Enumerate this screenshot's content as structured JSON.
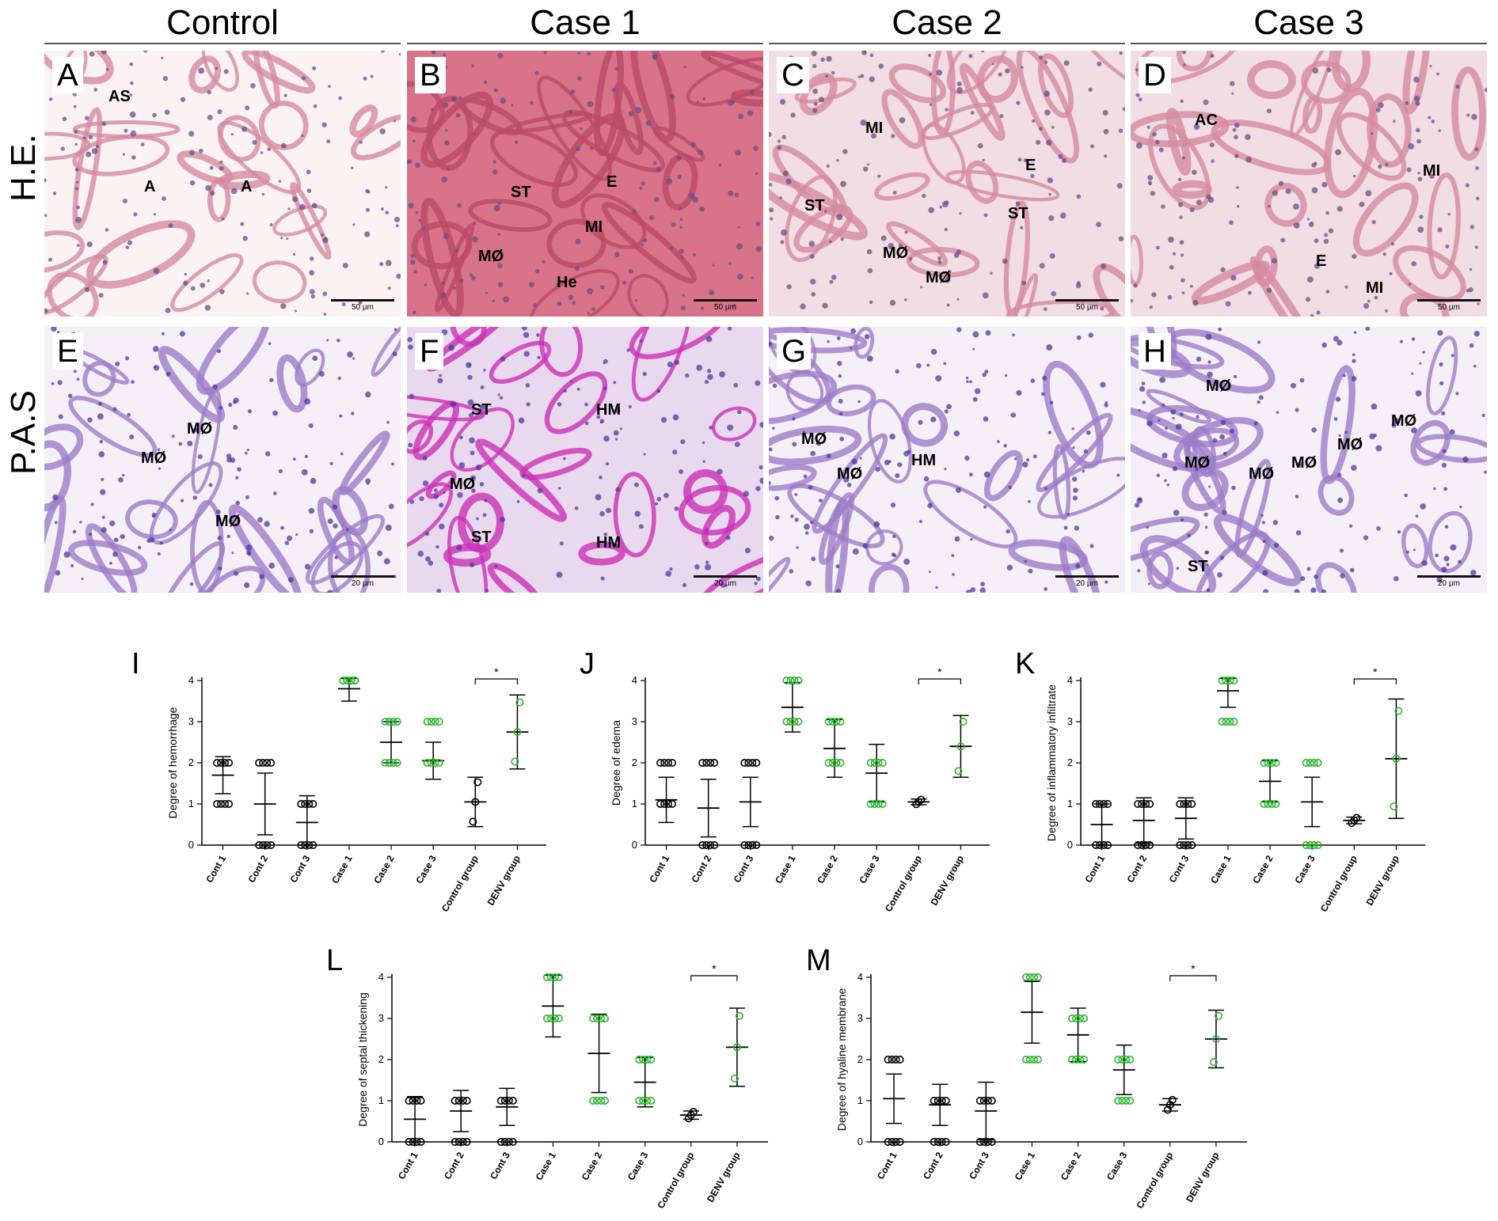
{
  "columns": [
    "Control",
    "Case 1",
    "Case 2",
    "Case 3"
  ],
  "rows": [
    "H.E.",
    "P.A.S"
  ],
  "panels": [
    {
      "label": "A",
      "scale": "50 µm",
      "annotations": [
        "AS",
        "A",
        "A"
      ]
    },
    {
      "label": "B",
      "scale": "50 µm",
      "annotations": [
        "E",
        "ST",
        "MI",
        "MØ",
        "He"
      ]
    },
    {
      "label": "C",
      "scale": "50 µm",
      "annotations": [
        "MI",
        "E",
        "ST",
        "ST",
        "MØ",
        "MØ"
      ]
    },
    {
      "label": "D",
      "scale": "50 µm",
      "annotations": [
        "AC",
        "MI",
        "E",
        "MI"
      ]
    },
    {
      "label": "E",
      "scale": "20 µm",
      "annotations": [
        "MØ",
        "MØ",
        "MØ"
      ]
    },
    {
      "label": "F",
      "scale": "20 µm",
      "annotations": [
        "ST",
        "HM",
        "MØ",
        "ST",
        "HM"
      ]
    },
    {
      "label": "G",
      "scale": "20 µm",
      "annotations": [
        "MØ",
        "MØ",
        "HM"
      ]
    },
    {
      "label": "H",
      "scale": "20 µm",
      "annotations": [
        "MØ",
        "MØ",
        "MØ",
        "MØ",
        "MØ",
        "MØ",
        "ST"
      ]
    }
  ],
  "colors": {
    "control": "#000000",
    "denv": "#2db52d",
    "he_bg": "#e9a6b8",
    "pas_bg": "#c9b8e6"
  },
  "chart_data": [
    {
      "label": "I",
      "type": "scatter",
      "ylabel": "Degree of hemorrhage",
      "ylim": [
        0,
        4
      ],
      "categories": [
        "Cont 1",
        "Cont 2",
        "Cont 3",
        "Case 1",
        "Case 2",
        "Case 3",
        "Control group",
        "DENV group"
      ],
      "mean": [
        1.7,
        1.0,
        0.55,
        3.8,
        2.5,
        2.05,
        1.05,
        2.75
      ],
      "sd": [
        0.45,
        0.75,
        0.65,
        0.3,
        0.5,
        0.45,
        0.6,
        0.9
      ],
      "annotation": "*"
    },
    {
      "label": "J",
      "type": "scatter",
      "ylabel": "Degree of edema",
      "ylim": [
        0,
        4
      ],
      "categories": [
        "Cont 1",
        "Cont 2",
        "Cont 3",
        "Case 1",
        "Case 2",
        "Case 3",
        "Control group",
        "DENV group"
      ],
      "mean": [
        1.1,
        0.9,
        1.05,
        3.35,
        2.35,
        1.75,
        1.05,
        2.4
      ],
      "sd": [
        0.55,
        0.7,
        0.6,
        0.6,
        0.7,
        0.7,
        0.07,
        0.75
      ],
      "annotation": "*"
    },
    {
      "label": "K",
      "type": "scatter",
      "ylabel": "Degree of inflammatory infiltrate",
      "ylim": [
        0,
        4
      ],
      "categories": [
        "Cont 1",
        "Cont 2",
        "Cont 3",
        "Case 1",
        "Case 2",
        "Case 3",
        "Control group",
        "DENV group"
      ],
      "mean": [
        0.5,
        0.6,
        0.65,
        3.75,
        1.55,
        1.05,
        0.6,
        2.1
      ],
      "sd": [
        0.5,
        0.55,
        0.5,
        0.4,
        0.5,
        0.6,
        0.08,
        1.45
      ],
      "annotation": "*"
    },
    {
      "label": "L",
      "type": "scatter",
      "ylabel": "Degree of septal thickening",
      "ylim": [
        0,
        4
      ],
      "categories": [
        "Cont 1",
        "Cont 2",
        "Cont 3",
        "Case 1",
        "Case 2",
        "Case 3",
        "Control group",
        "DENV group"
      ],
      "mean": [
        0.55,
        0.75,
        0.85,
        3.3,
        2.15,
        1.45,
        0.65,
        2.3
      ],
      "sd": [
        0.55,
        0.5,
        0.45,
        0.75,
        0.95,
        0.6,
        0.1,
        0.95
      ],
      "annotation": "*"
    },
    {
      "label": "M",
      "type": "scatter",
      "ylabel": "Degree of hyaline membrane",
      "ylim": [
        0,
        4
      ],
      "categories": [
        "Cont 1",
        "Cont 2",
        "Cont 3",
        "Case 1",
        "Case 2",
        "Case 3",
        "Control group",
        "DENV group"
      ],
      "mean": [
        1.05,
        0.9,
        0.75,
        3.15,
        2.6,
        1.75,
        0.9,
        2.5
      ],
      "sd": [
        0.6,
        0.5,
        0.7,
        0.75,
        0.65,
        0.6,
        0.15,
        0.7
      ],
      "annotation": "*"
    }
  ]
}
